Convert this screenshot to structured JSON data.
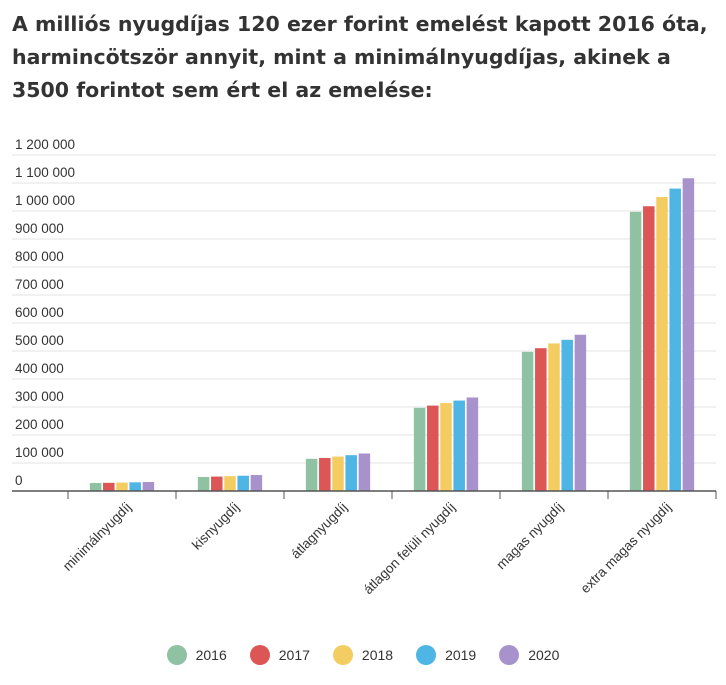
{
  "header": {
    "title": "A milliós nyugdíjas 120 ezer forint emelést kapott 2016 óta, harmincötször annyit, mint a minimálnyugdíjas, akinek a 3500 forintot sem ért el az emelése:"
  },
  "chart_data": {
    "type": "bar",
    "categories": [
      "minimálnyugdíj",
      "kisnyugdíj",
      "átlagnyugdíj",
      "átlagon felüli nyugdíj",
      "magas nyugdíj",
      "extra magas nyugdíj"
    ],
    "series": [
      {
        "name": "2016",
        "color": "#8fc2a2",
        "values": [
          28500,
          50000,
          115000,
          297000,
          497000,
          997000
        ]
      },
      {
        "name": "2017",
        "color": "#dc5656",
        "values": [
          29200,
          51500,
          118000,
          305000,
          510000,
          1017000
        ]
      },
      {
        "name": "2018",
        "color": "#f3cd62",
        "values": [
          30000,
          53000,
          123000,
          314000,
          527000,
          1050000
        ]
      },
      {
        "name": "2019",
        "color": "#4eb5e4",
        "values": [
          31000,
          54500,
          128000,
          323000,
          540000,
          1080000
        ]
      },
      {
        "name": "2020",
        "color": "#a792cc",
        "values": [
          32000,
          57000,
          134000,
          334000,
          558000,
          1117000
        ]
      }
    ],
    "yticks": [
      "0",
      "100 000",
      "200 000",
      "300 000",
      "400 000",
      "500 000",
      "600 000",
      "700 000",
      "800 000",
      "900 000",
      "1 000 000",
      "1 100 000",
      "1 200 000"
    ],
    "ylim": [
      0,
      1200000
    ],
    "grid": true,
    "legend_position": "bottom"
  }
}
